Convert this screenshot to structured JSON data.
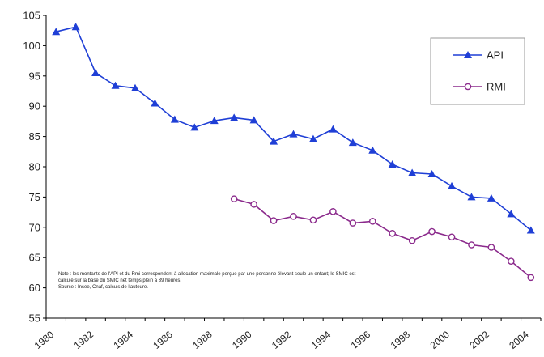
{
  "chart_data": {
    "type": "line",
    "title": "",
    "xlabel": "",
    "ylabel": "",
    "xlim": [
      1980,
      2005
    ],
    "ylim": [
      55,
      105
    ],
    "y_ticks": [
      55,
      60,
      65,
      70,
      75,
      80,
      85,
      90,
      95,
      100,
      105
    ],
    "x_tick_labels": [
      "1980",
      "1982",
      "1984",
      "1986",
      "1988",
      "1990",
      "1992",
      "1994",
      "1996",
      "1998",
      "2000",
      "2002",
      "2004"
    ],
    "grid": false,
    "legend": {
      "position": "top-right",
      "boxed": true
    },
    "series": [
      {
        "name": "API",
        "color": "#1f3fd6",
        "marker": "triangle",
        "x": [
          1980.5,
          1981.5,
          1982.5,
          1983.5,
          1984.5,
          1985.5,
          1986.5,
          1987.5,
          1988.5,
          1989.5,
          1990.5,
          1991.5,
          1992.5,
          1993.5,
          1994.5,
          1995.5,
          1996.5,
          1997.5,
          1998.5,
          1999.5,
          2000.5,
          2001.5,
          2002.5,
          2003.5,
          2004.5
        ],
        "y": [
          102.3,
          103.1,
          95.5,
          93.4,
          93.0,
          90.5,
          87.8,
          86.5,
          87.6,
          88.1,
          87.7,
          84.2,
          85.4,
          84.6,
          86.2,
          84.0,
          82.7,
          80.4,
          79.0,
          78.8,
          76.8,
          75.0,
          74.8,
          72.2,
          69.5
        ]
      },
      {
        "name": "RMI",
        "color": "#8b2a8c",
        "marker": "circle",
        "x": [
          1989.5,
          1990.5,
          1991.5,
          1992.5,
          1993.5,
          1994.5,
          1995.5,
          1996.5,
          1997.5,
          1998.5,
          1999.5,
          2000.5,
          2001.5,
          2002.5,
          2003.5,
          2004.5
        ],
        "y": [
          74.7,
          73.8,
          71.1,
          71.8,
          71.2,
          72.6,
          70.7,
          71.0,
          69.0,
          67.8,
          69.3,
          68.4,
          67.1,
          66.7,
          64.4,
          61.7
        ]
      }
    ],
    "annotation": {
      "line1": "Note : les montants de l'API et du Rmi correspondent à allocation maximale perçue par une personne élevant seule un enfant; le SMIC est",
      "line2": "calculé sur la base du SMIC net temps plein à 39 heures.",
      "line3": "Source : Insee, Cnaf, calculs de l'auteure."
    }
  }
}
